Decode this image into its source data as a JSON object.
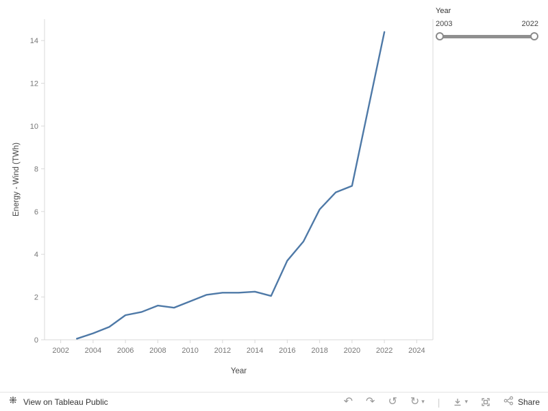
{
  "filter": {
    "label": "Year",
    "min": "2003",
    "max": "2022"
  },
  "footer": {
    "view_label": "View on Tableau Public",
    "share_label": "Share"
  },
  "icons": {
    "undo": "↶",
    "redo": "↷",
    "reset": "↺",
    "refresh": "↻",
    "caret": "▾",
    "separator": "|"
  },
  "chart_data": {
    "type": "line",
    "title": "",
    "xlabel": "Year",
    "ylabel": "Energy - Wind (TWh)",
    "x": [
      2003,
      2004,
      2005,
      2006,
      2007,
      2008,
      2009,
      2010,
      2011,
      2012,
      2013,
      2014,
      2015,
      2016,
      2017,
      2018,
      2019,
      2020,
      2021,
      2022
    ],
    "values": [
      0.05,
      0.3,
      0.6,
      1.15,
      1.3,
      1.6,
      1.5,
      1.8,
      2.1,
      2.2,
      2.2,
      2.25,
      2.05,
      3.7,
      4.6,
      6.1,
      6.9,
      7.2,
      10.8,
      14.4
    ],
    "x_ticks": [
      2002,
      2004,
      2006,
      2008,
      2010,
      2012,
      2014,
      2016,
      2018,
      2020,
      2022,
      2024
    ],
    "y_ticks": [
      0,
      2,
      4,
      6,
      8,
      10,
      12,
      14
    ],
    "xlim": [
      2001,
      2025
    ],
    "ylim": [
      0,
      15
    ],
    "grid": false,
    "legend": "none",
    "line_color": "#4e79a7"
  }
}
